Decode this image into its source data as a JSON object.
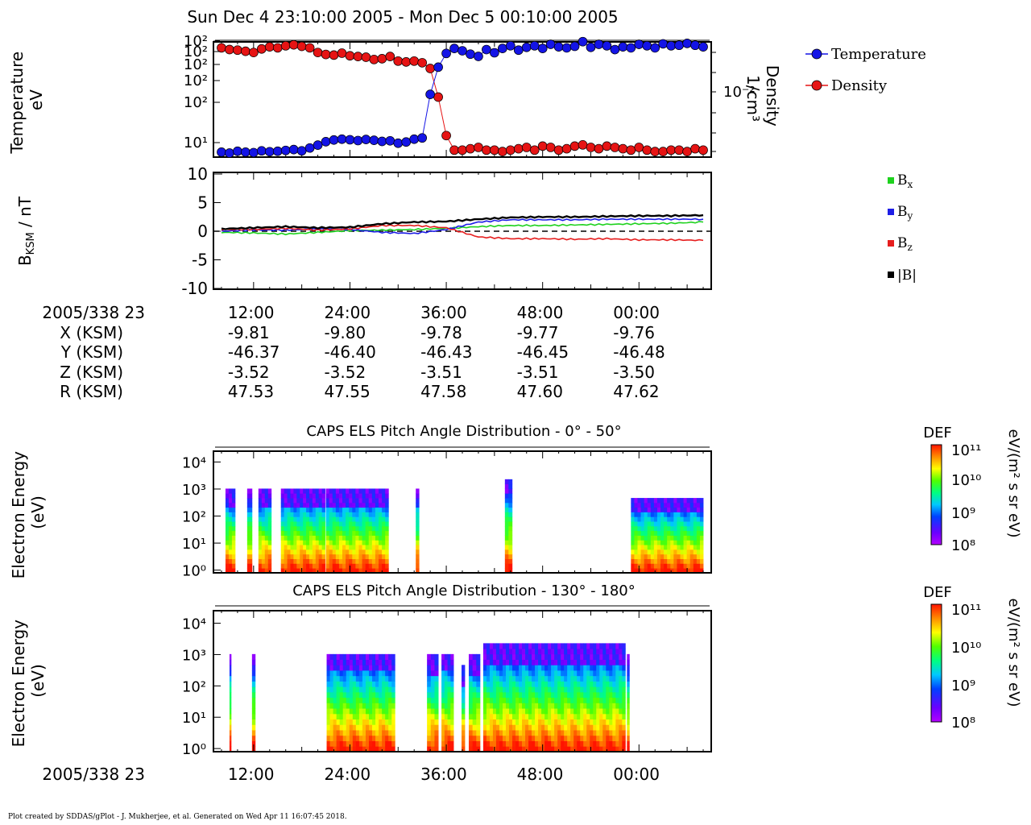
{
  "header": {
    "time_range": "Sun Dec 4 23:10:00 2005 - Mon Dec 5 00:10:00 2005"
  },
  "footer": {
    "credit": "Plot created by SDDAS/gPlot - J. Mukherjee, et al.  Generated on Wed Apr 11 16:07:45 2018."
  },
  "colors": {
    "temperature": "#1414e6",
    "density": "#e61414",
    "bx": "#1ed21e",
    "by": "#1e1ee6",
    "bz": "#e61e1e",
    "bmag": "#000000"
  },
  "ephemeris": {
    "row_labels": [
      "2005/338 23",
      "X (KSM)",
      "Y (KSM)",
      "Z (KSM)",
      "R (KSM)"
    ],
    "ticks": [
      "12:00",
      "24:00",
      "36:00",
      "48:00",
      "00:00"
    ],
    "X": [
      "-9.81",
      "-9.80",
      "-9.78",
      "-9.77",
      "-9.76"
    ],
    "Y": [
      "-46.37",
      "-46.40",
      "-46.43",
      "-46.45",
      "-46.48"
    ],
    "Z": [
      "-3.52",
      "-3.52",
      "-3.51",
      "-3.51",
      "-3.50"
    ],
    "R": [
      "47.53",
      "47.55",
      "47.58",
      "47.60",
      "47.62"
    ]
  },
  "bottom_axis": {
    "label": "2005/338 23",
    "ticks": [
      "12:00",
      "24:00",
      "36:00",
      "48:00",
      "00:00"
    ]
  },
  "colorbar": {
    "title": "DEF",
    "unit": "eV/(m² s sr eV)",
    "ticks": [
      "10⁸",
      "10⁹",
      "10¹⁰",
      "10¹¹"
    ]
  },
  "chart_data": [
    {
      "type": "line",
      "panel": "plasma-moments",
      "ylabel": "Temperature\neV",
      "y2label": "Density\n1/cm³",
      "y_ticks": [
        "10²",
        "10²",
        "10²",
        "10²",
        "10²",
        "10¹"
      ],
      "y2_ticks": [
        "10⁻²"
      ],
      "legend": [
        "Temperature",
        "Density"
      ],
      "legend_position": "right",
      "xlim_min": [
        8,
        68
      ],
      "series": [
        {
          "name": "Temperature",
          "x": [
            8,
            9,
            10,
            11,
            12,
            13,
            14,
            15,
            16,
            17,
            18,
            19,
            20,
            21,
            22,
            23,
            24,
            25,
            26,
            27,
            28,
            29,
            30,
            31,
            32,
            33,
            34,
            35,
            36,
            37,
            38,
            39,
            40,
            41,
            42,
            43,
            44,
            45,
            46,
            47,
            48,
            49,
            50,
            51,
            52,
            53,
            54,
            55,
            56,
            57,
            58,
            59,
            60,
            61,
            62,
            63,
            64,
            65,
            66,
            67,
            68
          ],
          "y": [
            5.2,
            5.0,
            5.4,
            5.2,
            5.1,
            5.5,
            5.3,
            5.4,
            5.6,
            5.8,
            5.5,
            6.2,
            7.0,
            8.1,
            8.7,
            9.0,
            8.8,
            8.5,
            8.9,
            8.6,
            8.2,
            8.4,
            7.6,
            8.0,
            9.0,
            9.5,
            60,
            190,
            340,
            420,
            380,
            330,
            300,
            400,
            350,
            420,
            470,
            390,
            440,
            470,
            420,
            500,
            450,
            430,
            460,
            560,
            440,
            500,
            470,
            400,
            450,
            430,
            500,
            470,
            430,
            510,
            470,
            480,
            520,
            480,
            450
          ]
        },
        {
          "name": "Density",
          "x": [
            8,
            9,
            10,
            11,
            12,
            13,
            14,
            15,
            16,
            17,
            18,
            19,
            20,
            21,
            22,
            23,
            24,
            25,
            26,
            27,
            28,
            29,
            30,
            31,
            32,
            33,
            34,
            35,
            36,
            37,
            38,
            39,
            40,
            41,
            42,
            43,
            44,
            45,
            46,
            47,
            48,
            49,
            50,
            51,
            52,
            53,
            54,
            55,
            56,
            57,
            58,
            59,
            60,
            61,
            62,
            63,
            64,
            65,
            66,
            67,
            68
          ],
          "y": [
            0.058,
            0.055,
            0.054,
            0.052,
            0.05,
            0.056,
            0.06,
            0.058,
            0.062,
            0.064,
            0.061,
            0.058,
            0.05,
            0.047,
            0.046,
            0.049,
            0.045,
            0.044,
            0.043,
            0.04,
            0.041,
            0.044,
            0.038,
            0.037,
            0.038,
            0.036,
            0.03,
            0.012,
            0.0035,
            0.0022,
            0.0022,
            0.0023,
            0.0024,
            0.0022,
            0.0022,
            0.0021,
            0.0022,
            0.0023,
            0.0024,
            0.0022,
            0.0025,
            0.0024,
            0.0022,
            0.0023,
            0.0025,
            0.0026,
            0.0024,
            0.0023,
            0.0025,
            0.0024,
            0.0023,
            0.0022,
            0.0024,
            0.0022,
            0.0021,
            0.0021,
            0.0022,
            0.0022,
            0.0021,
            0.0023,
            0.0022
          ]
        }
      ]
    },
    {
      "type": "line",
      "panel": "magnetic-field",
      "ylabel": "B_KSM / nT",
      "ylim": [
        -10,
        10
      ],
      "y_ticks": [
        "10",
        "5",
        "0",
        "-5",
        "-10"
      ],
      "legend_position": "right",
      "series": [
        {
          "name": "Bx",
          "x": [
            8,
            12,
            16,
            20,
            24,
            28,
            32,
            36,
            40,
            44,
            48,
            52,
            56,
            60,
            64,
            68
          ],
          "y": [
            -0.2,
            -0.3,
            -0.5,
            -0.2,
            0.1,
            0.2,
            0.3,
            0.5,
            0.8,
            1.0,
            1.0,
            1.1,
            1.2,
            1.3,
            1.4,
            1.6
          ]
        },
        {
          "name": "By",
          "x": [
            8,
            12,
            16,
            20,
            24,
            28,
            32,
            36,
            40,
            44,
            48,
            52,
            56,
            60,
            64,
            68
          ],
          "y": [
            0.0,
            0.2,
            0.2,
            0.4,
            0.3,
            -0.2,
            -0.4,
            0.3,
            1.6,
            2.0,
            2.0,
            2.0,
            2.1,
            2.1,
            2.1,
            2.1
          ]
        },
        {
          "name": "Bz",
          "x": [
            8,
            12,
            16,
            20,
            24,
            28,
            32,
            36,
            40,
            44,
            48,
            52,
            56,
            60,
            64,
            68
          ],
          "y": [
            0.3,
            0.3,
            0.5,
            0.2,
            0.4,
            1.0,
            1.0,
            0.6,
            -1.0,
            -1.3,
            -1.3,
            -1.4,
            -1.3,
            -1.5,
            -1.5,
            -1.6
          ]
        },
        {
          "name": "|B|",
          "x": [
            8,
            12,
            16,
            20,
            24,
            28,
            32,
            36,
            40,
            44,
            48,
            52,
            56,
            60,
            64,
            68
          ],
          "y": [
            0.4,
            0.6,
            0.8,
            0.6,
            0.7,
            1.3,
            1.6,
            1.7,
            2.1,
            2.4,
            2.5,
            2.5,
            2.6,
            2.7,
            2.7,
            2.8
          ]
        }
      ]
    },
    {
      "type": "heatmap",
      "panel": "els-0-50",
      "title": "CAPS ELS Pitch Angle Distribution - 0° - 50°",
      "ylabel": "Electron Energy\n(eV)",
      "y_ticks": [
        "10⁴",
        "10³",
        "10²",
        "10¹",
        "10⁰"
      ],
      "ylim_log10": [
        -0.1,
        4.4
      ],
      "data_intervals_min": [
        [
          8.5,
          9.7
        ],
        [
          11.2,
          11.8
        ],
        [
          12.6,
          14.2
        ],
        [
          15.4,
          20.9
        ],
        [
          21.0,
          28.8
        ],
        [
          32.2,
          32.6
        ],
        [
          43.3,
          44.2
        ],
        [
          59.0,
          68.0
        ]
      ],
      "cutoff_log10_energy": [
        2.9,
        2.9,
        2.9,
        2.9,
        2.9,
        2.9,
        3.3,
        2.6
      ]
    },
    {
      "type": "heatmap",
      "panel": "els-130-180",
      "title": "CAPS ELS Pitch Angle Distribution - 130° - 180°",
      "ylabel": "Electron Energy\n(eV)",
      "y_ticks": [
        "10⁴",
        "10³",
        "10²",
        "10¹",
        "10⁰"
      ],
      "ylim_log10": [
        -0.1,
        4.4
      ],
      "data_intervals_min": [
        [
          9.0,
          9.2
        ],
        [
          11.8,
          12.2
        ],
        [
          21.1,
          29.6
        ],
        [
          33.6,
          35.0
        ],
        [
          35.4,
          36.9
        ],
        [
          37.9,
          38.3
        ],
        [
          38.8,
          40.2
        ],
        [
          40.6,
          58.3
        ],
        [
          58.5,
          58.8
        ]
      ],
      "cutoff_log10_energy": [
        2.9,
        2.9,
        3.0,
        2.9,
        3.0,
        2.5,
        2.9,
        3.2,
        2.9
      ]
    }
  ]
}
